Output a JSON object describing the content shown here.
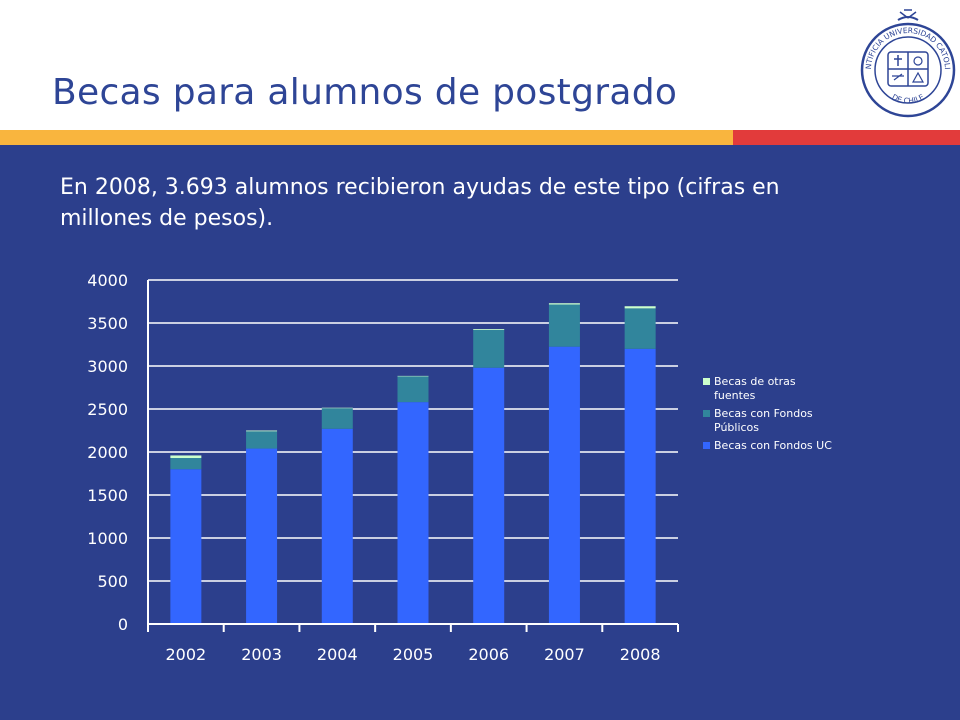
{
  "slide": {
    "title": "Becas para alumnos de postgrado",
    "subtitle": "En 2008, 3.693 alumnos recibieron ayudas de este tipo (cifras en millones de pesos)."
  },
  "colors": {
    "background": "#2c3f8c",
    "title": "#2e4596",
    "accent_yellow": "#f9b53e",
    "accent_red": "#e23b3b"
  },
  "logo": {
    "icon": "university-seal-icon",
    "text": "PONTIFICIA UNIVERSIDAD CATOLICA DE CHILE"
  },
  "chart_data": {
    "type": "bar",
    "stacked": true,
    "categories": [
      "2002",
      "2003",
      "2004",
      "2005",
      "2006",
      "2007",
      "2008"
    ],
    "series": [
      {
        "name": "Becas con Fondos UC",
        "color": "#3366ff",
        "values": [
          1800,
          2040,
          2270,
          2580,
          2980,
          3225,
          3200
        ]
      },
      {
        "name": "Becas con Fondos Públicos",
        "color": "#31859c",
        "values": [
          130,
          200,
          240,
          300,
          440,
          490,
          470
        ]
      },
      {
        "name": "Becas de otras fuentes",
        "color": "#ccffcc",
        "values": [
          30,
          10,
          5,
          5,
          10,
          15,
          25
        ]
      }
    ],
    "legend_entries": [
      {
        "lines": [
          "Becas de otras",
          "fuentes"
        ],
        "color": "#ccffcc"
      },
      {
        "lines": [
          "Becas con Fondos",
          "Públicos"
        ],
        "color": "#31859c"
      },
      {
        "lines": [
          "Becas con Fondos UC"
        ],
        "color": "#3366ff"
      }
    ],
    "yticks": [
      "0",
      "500",
      "1000",
      "1500",
      "2000",
      "2500",
      "3000",
      "3500",
      "4000"
    ],
    "ylim": [
      0,
      4000
    ],
    "grid": true,
    "legend_position": "right"
  }
}
